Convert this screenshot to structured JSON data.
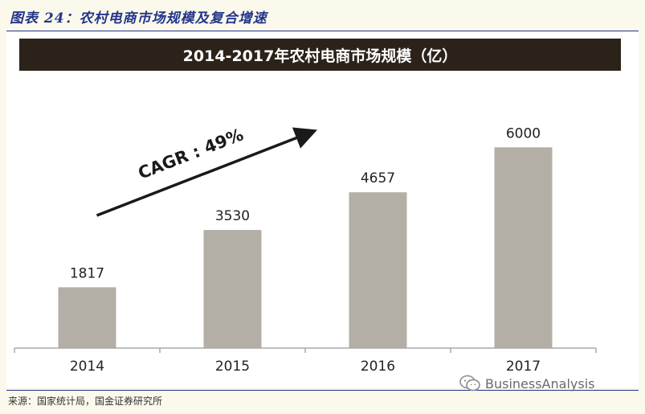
{
  "figure": {
    "caption": "图表 24：农村电商市场规模及复合增速",
    "source": "来源：国家统计局，国金证券研究所"
  },
  "watermark": {
    "text": "BusinessAnalysis",
    "icon": "wechat-icon"
  },
  "colors": {
    "caption": "#24358a",
    "title_bar": "#2b221a",
    "bar": "#b3afa6",
    "axis": "#a8a8a8",
    "arrow": "#1a1a1a"
  },
  "chart_data": {
    "type": "bar",
    "title": "2014-2017年农村电商市场规模（亿）",
    "categories": [
      "2014",
      "2015",
      "2016",
      "2017"
    ],
    "values": [
      1817,
      3530,
      4657,
      6000
    ],
    "unit": "亿",
    "ylim": [
      0,
      6800
    ],
    "grid": false,
    "legend": "none",
    "annotations": [
      {
        "text": "CAGR : 49%",
        "type": "arrow",
        "from_category": "2014",
        "to_category": "2016"
      }
    ]
  }
}
